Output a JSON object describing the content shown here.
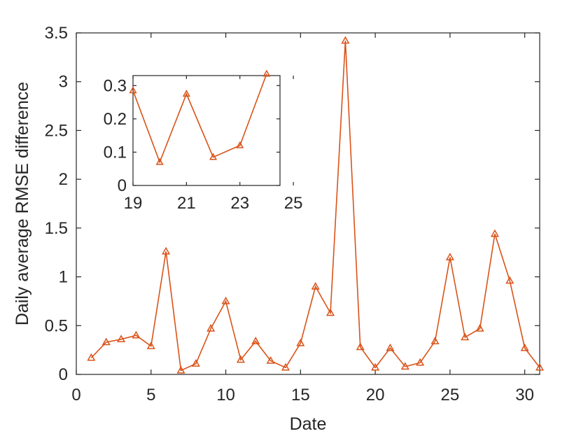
{
  "chart_data": [
    {
      "type": "line",
      "xlabel": "Date",
      "ylabel": "Daily average RMSE difference",
      "xlim": [
        0,
        31
      ],
      "ylim": [
        0,
        3.5
      ],
      "xticks": [
        "0",
        "5",
        "10",
        "15",
        "20",
        "25",
        "30"
      ],
      "yticks": [
        "0",
        "0.5",
        "1",
        "1.5",
        "2",
        "2.5",
        "3",
        "3.5"
      ],
      "x": [
        1,
        2,
        3,
        4,
        5,
        6,
        7,
        8,
        9,
        10,
        11,
        12,
        13,
        14,
        15,
        16,
        17,
        18,
        19,
        20,
        21,
        22,
        23,
        24,
        25,
        26,
        27,
        28,
        29,
        30,
        31
      ],
      "values": [
        0.17,
        0.33,
        0.36,
        0.4,
        0.29,
        1.26,
        0.04,
        0.11,
        0.47,
        0.75,
        0.15,
        0.34,
        0.14,
        0.07,
        0.32,
        0.9,
        0.63,
        3.42,
        0.28,
        0.07,
        0.27,
        0.08,
        0.12,
        0.34,
        1.2,
        0.38,
        0.47,
        1.44,
        0.96,
        0.27,
        0.07
      ],
      "marker": "triangle",
      "color": "#d95319"
    },
    {
      "type": "line",
      "role": "inset",
      "xlim": [
        19,
        24.5
      ],
      "ylim": [
        0,
        0.33
      ],
      "xticks": [
        "19",
        "21",
        "23",
        "25"
      ],
      "yticks": [
        "0",
        "0.1",
        "0.2",
        "0.3"
      ],
      "x": [
        19,
        20,
        21,
        22,
        23,
        24
      ],
      "values": [
        0.285,
        0.07,
        0.275,
        0.085,
        0.12,
        0.335
      ],
      "marker": "triangle",
      "color": "#d95319"
    }
  ]
}
